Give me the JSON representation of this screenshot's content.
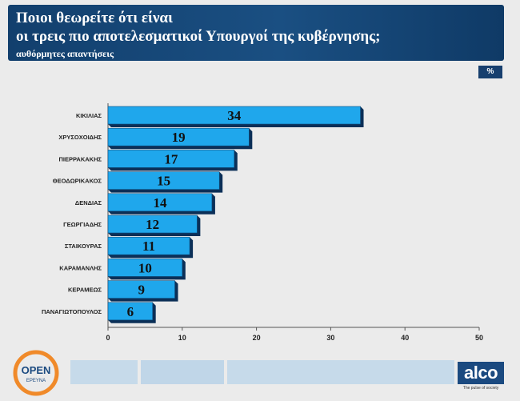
{
  "header": {
    "title_line1": "Ποιοι θεωρείτε ότι είναι",
    "title_line2": "οι τρεις πιο αποτελεσματικοί Υπουργοί της κυβέρνησης;",
    "subtitle": "αυθόρμητες απαντήσεις"
  },
  "unit_label": "%",
  "chart_data": {
    "type": "bar",
    "orientation": "horizontal",
    "categories": [
      "ΚΙΚΙΛΙΑΣ",
      "ΧΡΥΣΟΧΟΙΔΗΣ",
      "ΠΙΕΡΡΑΚΑΚΗΣ",
      "ΘΕΟΔΩΡΙΚΑΚΟΣ",
      "ΔΕΝΔΙΑΣ",
      "ΓΕΩΡΓΙΑΔΗΣ",
      "ΣΤΑΙΚΟΥΡΑΣ",
      "ΚΑΡΑΜΑΝΛΗΣ",
      "ΚΕΡΑΜΕΩΣ",
      "ΠΑΝΑΓΙΩΤΟΠΟΥΛΟΣ"
    ],
    "values": [
      34,
      19,
      17,
      15,
      14,
      12,
      11,
      10,
      9,
      6
    ],
    "xlim": [
      0,
      50
    ],
    "xticks": [
      0,
      10,
      20,
      30,
      40,
      50
    ],
    "bar_color": "#1fa7ec",
    "bar_shadow_color": "#0b2f57",
    "grid": false
  },
  "logos": {
    "open_line1": "OPEN",
    "open_line2": "ΕΡΕΥΝΑ",
    "alco": "alco",
    "alco_tagline": "The pulse of society"
  }
}
